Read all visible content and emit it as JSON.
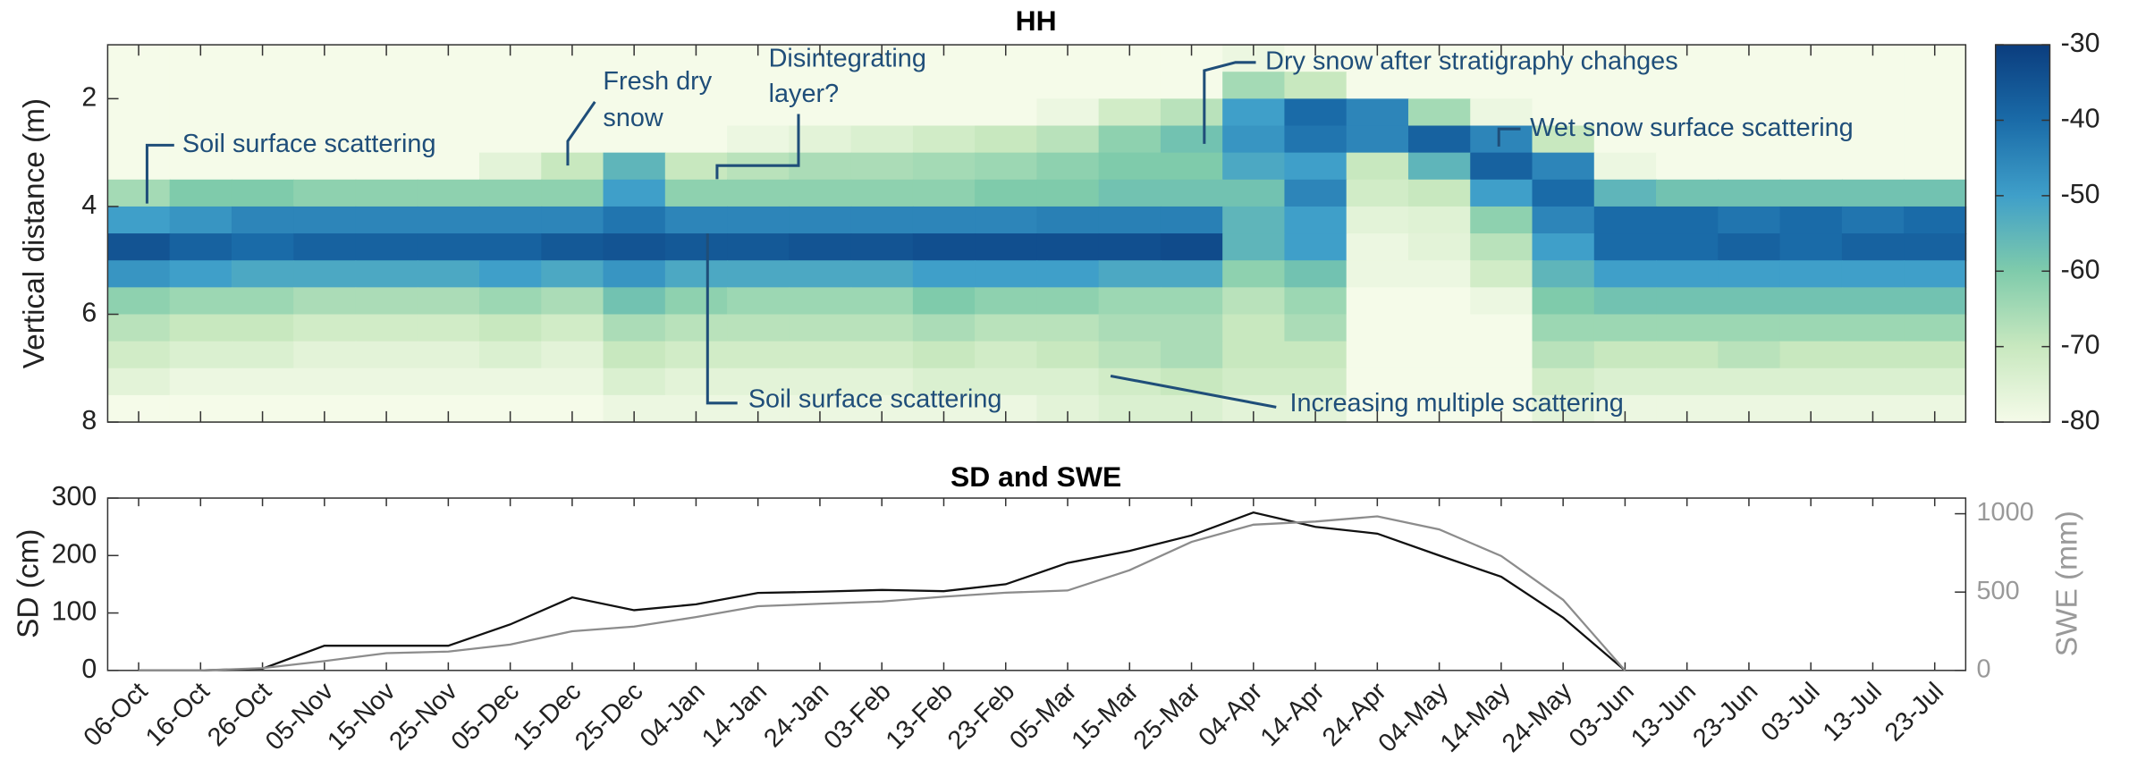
{
  "chart_data": [
    {
      "type": "heatmap",
      "title": "HH",
      "ylabel": "Vertical distance (m)",
      "ylim": [
        1,
        8
      ],
      "y_reversed": true,
      "yticks": [
        2,
        4,
        6,
        8
      ],
      "rows": [
        1.25,
        1.75,
        2.25,
        2.75,
        3.25,
        3.75,
        4.25,
        4.75,
        5.25,
        5.75,
        6.25,
        6.75,
        7.25,
        7.75
      ],
      "z": [
        [
          -80,
          -80,
          -80,
          -80,
          -80,
          -80,
          -80,
          -80,
          -80,
          -80,
          -80,
          -80,
          -80,
          -80,
          -80,
          -80,
          -80,
          -80,
          -78,
          -80,
          -80,
          -80,
          -80,
          -80,
          -80,
          -80,
          -80,
          -80,
          -80,
          -80
        ],
        [
          -80,
          -80,
          -80,
          -80,
          -80,
          -80,
          -80,
          -80,
          -80,
          -80,
          -80,
          -80,
          -80,
          -80,
          -80,
          -80,
          -80,
          -80,
          -65,
          -70,
          -80,
          -80,
          -80,
          -80,
          -80,
          -80,
          -80,
          -80,
          -80,
          -80
        ],
        [
          -80,
          -80,
          -80,
          -80,
          -80,
          -80,
          -80,
          -80,
          -80,
          -80,
          -80,
          -80,
          -80,
          -80,
          -80,
          -78,
          -72,
          -68,
          -50,
          -40,
          -45,
          -65,
          -78,
          -80,
          -80,
          -80,
          -80,
          -80,
          -80,
          -80
        ],
        [
          -80,
          -80,
          -80,
          -80,
          -80,
          -80,
          -80,
          -80,
          -80,
          -80,
          -78,
          -76,
          -74,
          -72,
          -70,
          -68,
          -62,
          -58,
          -48,
          -42,
          -45,
          -38,
          -45,
          -70,
          -80,
          -80,
          -80,
          -80,
          -80,
          -80
        ],
        [
          -80,
          -80,
          -80,
          -80,
          -80,
          -80,
          -76,
          -70,
          -55,
          -70,
          -68,
          -66,
          -66,
          -65,
          -64,
          -62,
          -60,
          -60,
          -52,
          -50,
          -70,
          -55,
          -38,
          -45,
          -78,
          -80,
          -80,
          -80,
          -80,
          -80
        ],
        [
          -65,
          -60,
          -60,
          -62,
          -62,
          -62,
          -62,
          -62,
          -50,
          -62,
          -62,
          -62,
          -62,
          -62,
          -60,
          -60,
          -58,
          -58,
          -58,
          -45,
          -72,
          -70,
          -50,
          -40,
          -55,
          -58,
          -58,
          -58,
          -58,
          -58
        ],
        [
          -50,
          -48,
          -45,
          -45,
          -45,
          -45,
          -45,
          -45,
          -42,
          -45,
          -45,
          -45,
          -45,
          -45,
          -45,
          -44,
          -44,
          -44,
          -55,
          -50,
          -76,
          -75,
          -62,
          -45,
          -40,
          -40,
          -42,
          -40,
          -42,
          -40
        ],
        [
          -35,
          -38,
          -40,
          -38,
          -38,
          -38,
          -38,
          -36,
          -35,
          -36,
          -36,
          -35,
          -35,
          -34,
          -34,
          -34,
          -34,
          -33,
          -55,
          -50,
          -78,
          -76,
          -68,
          -50,
          -40,
          -40,
          -38,
          -40,
          -38,
          -38
        ],
        [
          -48,
          -50,
          -52,
          -52,
          -52,
          -52,
          -50,
          -52,
          -48,
          -52,
          -52,
          -52,
          -52,
          -50,
          -50,
          -50,
          -52,
          -52,
          -62,
          -58,
          -78,
          -78,
          -72,
          -55,
          -50,
          -50,
          -50,
          -50,
          -50,
          -50
        ],
        [
          -62,
          -64,
          -64,
          -66,
          -66,
          -66,
          -64,
          -66,
          -58,
          -62,
          -64,
          -64,
          -64,
          -60,
          -62,
          -62,
          -64,
          -64,
          -68,
          -64,
          -80,
          -80,
          -78,
          -60,
          -58,
          -58,
          -58,
          -58,
          -58,
          -58
        ],
        [
          -68,
          -70,
          -70,
          -72,
          -72,
          -72,
          -70,
          -72,
          -66,
          -68,
          -68,
          -68,
          -68,
          -66,
          -68,
          -68,
          -66,
          -66,
          -70,
          -66,
          -80,
          -80,
          -80,
          -64,
          -64,
          -64,
          -64,
          -64,
          -64,
          -64
        ],
        [
          -72,
          -74,
          -74,
          -76,
          -76,
          -76,
          -74,
          -76,
          -70,
          -72,
          -72,
          -72,
          -72,
          -70,
          -72,
          -70,
          -68,
          -66,
          -70,
          -70,
          -80,
          -80,
          -80,
          -68,
          -70,
          -70,
          -68,
          -70,
          -70,
          -70
        ],
        [
          -76,
          -78,
          -78,
          -78,
          -78,
          -78,
          -78,
          -78,
          -74,
          -76,
          -76,
          -76,
          -76,
          -74,
          -74,
          -74,
          -72,
          -70,
          -72,
          -72,
          -80,
          -80,
          -80,
          -72,
          -74,
          -74,
          -74,
          -74,
          -74,
          -74
        ],
        [
          -80,
          -80,
          -80,
          -80,
          -80,
          -80,
          -80,
          -80,
          -78,
          -78,
          -78,
          -78,
          -78,
          -78,
          -78,
          -76,
          -74,
          -74,
          -76,
          -76,
          -80,
          -80,
          -80,
          -76,
          -78,
          -78,
          -78,
          -78,
          -78,
          -78
        ]
      ],
      "clim": [
        -80,
        -30
      ],
      "cticks": [
        -30,
        -40,
        -50,
        -60,
        -70,
        -80
      ],
      "colormap": [
        "#f5fbe9",
        "#c8e8bf",
        "#7fcbab",
        "#3f9fc9",
        "#1a6ba8",
        "#0b3d7e"
      ],
      "annotations": [
        [
          "Soil surface scattering"
        ],
        [
          "Fresh dry",
          "snow"
        ],
        [
          "Disintegrating",
          "layer?"
        ],
        [
          "Dry snow after stratigraphy changes"
        ],
        [
          "Wet snow surface scattering"
        ],
        [
          "Soil surface scattering"
        ],
        [
          "Increasing multiple scattering"
        ]
      ]
    },
    {
      "type": "line",
      "title": "SD and SWE",
      "ylabel": "SD (cm)",
      "y2label": "SWE (mm)",
      "categories": [
        "06-Oct",
        "16-Oct",
        "26-Oct",
        "05-Nov",
        "15-Nov",
        "25-Nov",
        "05-Dec",
        "15-Dec",
        "25-Dec",
        "04-Jan",
        "14-Jan",
        "24-Jan",
        "03-Feb",
        "13-Feb",
        "23-Feb",
        "05-Mar",
        "15-Mar",
        "25-Mar",
        "04-Apr",
        "14-Apr",
        "24-Apr",
        "04-May",
        "14-May",
        "24-May",
        "03-Jun",
        "13-Jun",
        "23-Jun",
        "03-Jul",
        "13-Jul",
        "23-Jul"
      ],
      "ylim": [
        0,
        300
      ],
      "yticks": [
        0,
        100,
        200,
        300
      ],
      "y2lim": [
        0,
        1100
      ],
      "y2ticks": [
        0,
        500,
        1000
      ],
      "y2color": "#999999",
      "series": [
        {
          "color": "#111111",
          "values": [
            0,
            0,
            3,
            43,
            43,
            43,
            80,
            127,
            105,
            115,
            135,
            137,
            140,
            138,
            150,
            187,
            208,
            235,
            275,
            250,
            238,
            200,
            163,
            92,
            0,
            null,
            null,
            null,
            null,
            null
          ]
        },
        {
          "color": "#8c8c8c",
          "axis": "y2",
          "values": [
            0,
            0,
            15,
            60,
            110,
            120,
            165,
            250,
            280,
            340,
            410,
            425,
            440,
            470,
            496,
            510,
            640,
            820,
            930,
            950,
            983,
            900,
            730,
            450,
            0,
            null,
            null,
            null,
            null,
            null
          ]
        }
      ]
    }
  ]
}
